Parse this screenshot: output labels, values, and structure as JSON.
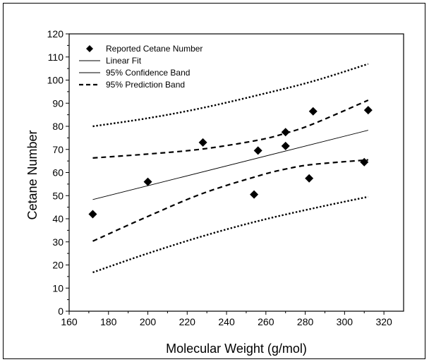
{
  "chart_data": {
    "type": "scatter",
    "xlabel": "Molecular Weight (g/mol)",
    "ylabel": "Cetane Number",
    "xlim": [
      160,
      330
    ],
    "ylim": [
      0,
      120
    ],
    "x_ticks": [
      160,
      180,
      200,
      220,
      240,
      260,
      280,
      300,
      320
    ],
    "y_ticks": [
      0,
      10,
      20,
      30,
      40,
      50,
      60,
      70,
      80,
      90,
      100,
      110,
      120
    ],
    "grid": false,
    "legend_position": "top-left",
    "legend": [
      "Reported Cetane Number",
      "Linear Fit",
      "95% Confidence Band",
      "95% Prediction Band"
    ],
    "points": {
      "name": "Reported Cetane Number",
      "x": [
        172,
        200,
        228,
        254,
        256,
        270,
        270,
        282,
        284,
        310,
        312
      ],
      "y": [
        42,
        56,
        73,
        50.5,
        69.5,
        77.5,
        71.5,
        57.5,
        86.5,
        64.5,
        87
      ]
    },
    "linear_fit": {
      "name": "Linear Fit",
      "x": [
        172,
        312
      ],
      "y": [
        48.3,
        78.3
      ]
    },
    "confidence_band_upper": {
      "name": "95% Confidence Band",
      "x": [
        172,
        200,
        228,
        256,
        270,
        284,
        312
      ],
      "y": [
        66.3,
        68.0,
        70.2,
        74.0,
        77.0,
        81.0,
        91.3
      ]
    },
    "confidence_band_lower": {
      "name": "95% Confidence Band",
      "x": [
        172,
        200,
        228,
        256,
        270,
        284,
        312
      ],
      "y": [
        30.3,
        41.0,
        51.0,
        58.5,
        61.5,
        63.5,
        65.5
      ]
    },
    "prediction_band_upper": {
      "name": "95% Prediction Band",
      "x": [
        172,
        200,
        228,
        256,
        284,
        312
      ],
      "y": [
        80.0,
        83.5,
        88.0,
        93.5,
        99.5,
        107.0
      ]
    },
    "prediction_band_lower": {
      "name": "95% Prediction Band",
      "x": [
        172,
        200,
        228,
        256,
        284,
        312
      ],
      "y": [
        16.8,
        25.0,
        32.5,
        39.0,
        44.5,
        49.5
      ]
    }
  }
}
